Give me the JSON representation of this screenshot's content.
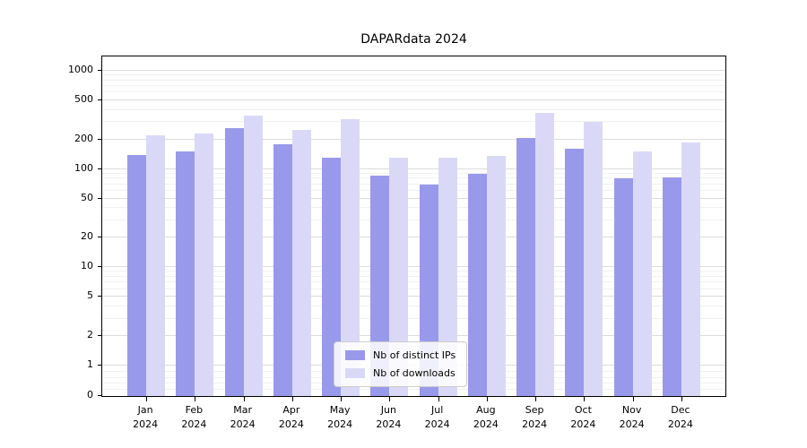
{
  "chart_data": {
    "type": "bar",
    "title": "DAPARdata 2024",
    "categories": [
      "Jan 2024",
      "Feb 2024",
      "Mar 2024",
      "Apr 2024",
      "May 2024",
      "Jun 2024",
      "Jul 2024",
      "Aug 2024",
      "Sep 2024",
      "Oct 2024",
      "Nov 2024",
      "Dec 2024"
    ],
    "series": [
      {
        "name": "Nb of distinct IPs",
        "color": "#9999eb",
        "values": [
          140,
          150,
          260,
          180,
          130,
          85,
          70,
          90,
          205,
          160,
          80,
          82
        ]
      },
      {
        "name": "Nb of downloads",
        "color": "#d9d9f7",
        "values": [
          220,
          230,
          350,
          250,
          320,
          130,
          130,
          135,
          370,
          300,
          150,
          185
        ]
      }
    ],
    "y_ticks": [
      0,
      1,
      2,
      5,
      10,
      20,
      50,
      100,
      200,
      500,
      1000
    ],
    "y_scale": "symlog",
    "ylim": [
      0,
      1000
    ],
    "xlabel": "",
    "ylabel": "",
    "grid": true,
    "legend_position": "lower center"
  }
}
